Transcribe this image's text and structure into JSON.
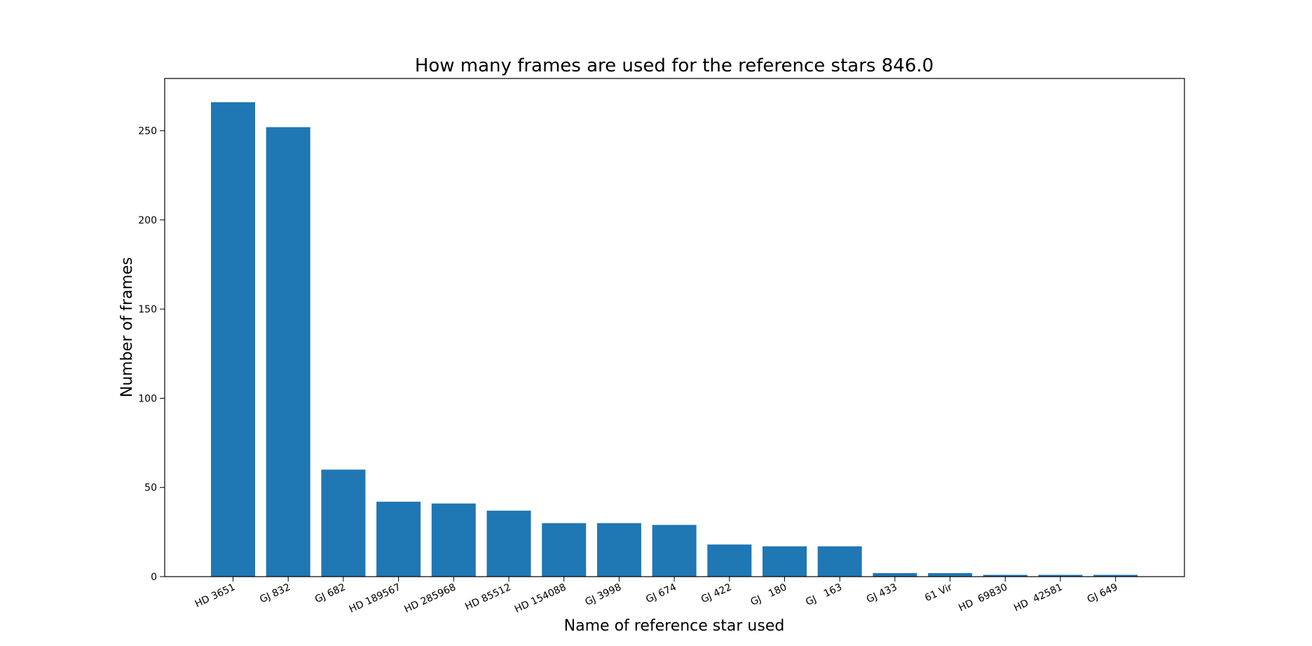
{
  "chart_data": {
    "type": "bar",
    "title": "How many frames are used for the reference stars 846.0",
    "xlabel": "Name of reference star used",
    "ylabel": "Number of frames",
    "categories": [
      "HD 3651",
      "GJ 832",
      "GJ 682",
      "HD 189567",
      "HD 285968",
      "HD 85512",
      "HD 154088",
      "GJ 3998",
      "GJ 674",
      "GJ 422",
      "GJ   180",
      "GJ   163",
      "GJ 433",
      "61 Vir",
      "HD  69830",
      "HD  42581",
      "GJ 649"
    ],
    "values": [
      266,
      252,
      60,
      42,
      41,
      37,
      30,
      30,
      29,
      18,
      17,
      17,
      2,
      2,
      1,
      1,
      1
    ],
    "ylim": [
      0,
      279.3
    ],
    "yticks": [
      0,
      50,
      100,
      150,
      200,
      250
    ],
    "grid": false,
    "bar_color": "#1f77b4",
    "xtick_rotation_deg": -25
  }
}
